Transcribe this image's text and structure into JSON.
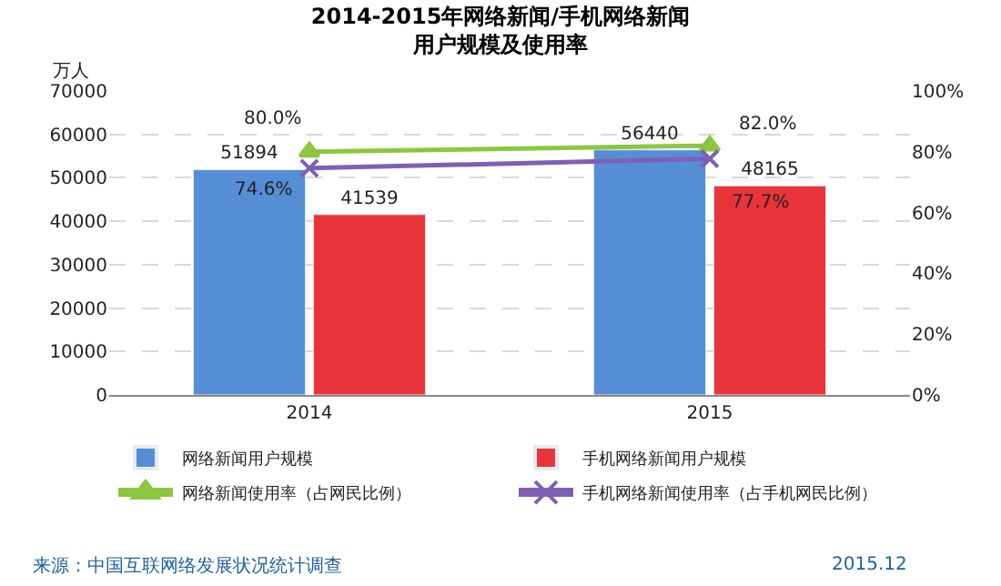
{
  "chart_data": {
    "type": "bar",
    "title": "2014-2015年网络新闻/手机网络新闻",
    "subtitle": "用户规模及使用率",
    "ylabel": "万人",
    "categories": [
      "2014",
      "2015"
    ],
    "series": [
      {
        "name": "网络新闻用户规模",
        "color": "#558ed5",
        "values": [
          51894,
          56440
        ]
      },
      {
        "name": "手机网络新闻用户规模",
        "color": "#e9353a",
        "values": [
          41539,
          48165
        ]
      },
      {
        "name": "网络新闻使用率（占网民比例）",
        "type": "line",
        "axis": "y2",
        "marker": "triangle",
        "color": "#8dc63f",
        "values": [
          80.0,
          82.0
        ],
        "value_labels": [
          "80.0%",
          "82.0%"
        ]
      },
      {
        "name": "手机网络新闻使用率（占手机网民比例）",
        "type": "line",
        "axis": "y2",
        "marker": "cross",
        "color": "#7f5fb5",
        "values": [
          74.6,
          77.7
        ],
        "value_labels": [
          "74.6%",
          "77.7%"
        ]
      }
    ],
    "ylim": [
      0,
      70000
    ],
    "yticks": [
      0,
      10000,
      20000,
      30000,
      40000,
      50000,
      60000,
      70000
    ],
    "y2lim": [
      0,
      100
    ],
    "y2ticks": [
      {
        "value": 0,
        "label": "0%"
      },
      {
        "value": 20,
        "label": "20%"
      },
      {
        "value": 40,
        "label": "40%"
      },
      {
        "value": 60,
        "label": "60%"
      },
      {
        "value": 80,
        "label": "80%"
      },
      {
        "value": 100,
        "label": "100%"
      }
    ],
    "data_labels": true,
    "grid": "y",
    "legend": "bottom",
    "annotations": [
      "来源：中国互联网络发展状况统计调查",
      "2015.12"
    ]
  }
}
